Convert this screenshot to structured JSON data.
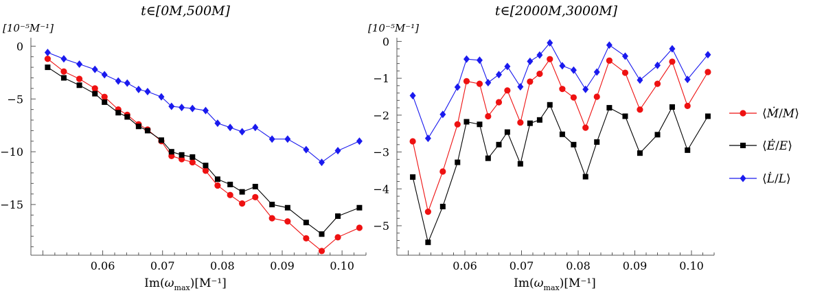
{
  "chart_data": [
    {
      "type": "line",
      "title": "t∈[0M,500M]",
      "ylabel": "[10⁻⁵M⁻¹]",
      "xlabel": "Im(ω_max)[M⁻¹]",
      "xlabel_main": "Im(",
      "xlabel_omega": "ω",
      "xlabel_sub": "max",
      "xlabel_tail": ")[M⁻¹]",
      "xlim": [
        0.048,
        0.104
      ],
      "ylim": [
        -19.8,
        0.8
      ],
      "xticks": [
        0.06,
        0.07,
        0.08,
        0.09,
        0.1
      ],
      "xtick_labels": [
        "0.06",
        "0.07",
        "0.08",
        "0.09",
        "0.10"
      ],
      "yticks": [
        0,
        -5,
        -10,
        -15
      ],
      "ytick_labels": [
        "0",
        "−5",
        "−10",
        "−15"
      ],
      "grid": false,
      "x": [
        0.0508,
        0.0535,
        0.0561,
        0.0587,
        0.0603,
        0.0626,
        0.0641,
        0.066,
        0.0675,
        0.0698,
        0.0715,
        0.0732,
        0.075,
        0.0772,
        0.0792,
        0.0813,
        0.0833,
        0.0855,
        0.0883,
        0.0909,
        0.094,
        0.0966,
        0.0993,
        0.1029
      ],
      "series": [
        {
          "name": "⟨Ṁ/M⟩",
          "color": "#ee1111",
          "marker": "circle",
          "values": [
            -1.2,
            -2.4,
            -3.1,
            -4.0,
            -4.8,
            -6.0,
            -6.5,
            -7.4,
            -7.9,
            -9.0,
            -10.4,
            -10.7,
            -11.0,
            -11.8,
            -13.2,
            -14.1,
            -14.9,
            -14.3,
            -16.3,
            -16.6,
            -18.2,
            -19.4,
            -18.1,
            -17.2
          ]
        },
        {
          "name": "⟨Ė/E⟩",
          "color": "#000000",
          "marker": "square",
          "values": [
            -2.0,
            -3.0,
            -3.7,
            -4.5,
            -5.3,
            -6.3,
            -6.7,
            -7.6,
            -8.0,
            -8.9,
            -10.0,
            -10.3,
            -10.5,
            -11.3,
            -12.6,
            -13.1,
            -13.8,
            -13.3,
            -15.0,
            -15.3,
            -16.7,
            -17.8,
            -16.1,
            -15.3
          ]
        },
        {
          "name": "⟨L̇/L⟩",
          "color": "#1a1aee",
          "marker": "diamond",
          "values": [
            -0.6,
            -1.2,
            -1.7,
            -2.2,
            -2.7,
            -3.3,
            -3.5,
            -4.1,
            -4.3,
            -4.8,
            -5.7,
            -5.8,
            -5.9,
            -6.1,
            -7.3,
            -7.7,
            -8.1,
            -7.7,
            -8.8,
            -8.8,
            -9.8,
            -11.0,
            -9.9,
            -9.0
          ]
        }
      ]
    },
    {
      "type": "line",
      "title": "t∈[2000M,3000M]",
      "ylabel": "[10⁻⁵M⁻¹]",
      "xlabel": "Im(ω_max)[M⁻¹]",
      "xlabel_main": "Im(",
      "xlabel_omega": "ω",
      "xlabel_sub": "max",
      "xlabel_tail": ")[M⁻¹]",
      "xlim": [
        0.048,
        0.104
      ],
      "ylim": [
        -5.8,
        0.1
      ],
      "xticks": [
        0.06,
        0.07,
        0.08,
        0.09,
        0.1
      ],
      "xtick_labels": [
        "0.06",
        "0.07",
        "0.08",
        "0.09",
        "0.10"
      ],
      "yticks": [
        0,
        -1,
        -2,
        -3,
        -4,
        -5
      ],
      "ytick_labels": [
        "0",
        "−1",
        "−2",
        "−3",
        "−4",
        "−5"
      ],
      "grid": false,
      "x": [
        0.0508,
        0.0535,
        0.0561,
        0.0587,
        0.0603,
        0.0626,
        0.0641,
        0.066,
        0.0675,
        0.0698,
        0.0715,
        0.0732,
        0.075,
        0.0772,
        0.0792,
        0.0813,
        0.0833,
        0.0855,
        0.0883,
        0.0909,
        0.094,
        0.0966,
        0.0993,
        0.1029
      ],
      "series": [
        {
          "name": "⟨Ṁ/M⟩",
          "color": "#ee1111",
          "marker": "circle",
          "values": [
            -2.71,
            -4.62,
            -3.53,
            -2.25,
            -1.08,
            -1.15,
            -2.03,
            -1.65,
            -1.33,
            -2.2,
            -1.09,
            -0.88,
            -0.48,
            -1.29,
            -1.52,
            -2.34,
            -1.5,
            -0.52,
            -0.85,
            -1.85,
            -1.15,
            -0.55,
            -1.75,
            -0.83
          ]
        },
        {
          "name": "⟨Ė/E⟩",
          "color": "#000000",
          "marker": "square",
          "values": [
            -3.68,
            -5.45,
            -4.48,
            -3.28,
            -2.18,
            -2.25,
            -3.17,
            -2.8,
            -2.46,
            -3.32,
            -2.22,
            -2.13,
            -1.72,
            -2.52,
            -2.8,
            -3.67,
            -2.73,
            -1.8,
            -2.03,
            -3.03,
            -2.53,
            -1.78,
            -2.95,
            -2.03
          ]
        },
        {
          "name": "⟨L̇/L⟩",
          "color": "#1a1aee",
          "marker": "diamond",
          "values": [
            -1.47,
            -2.63,
            -1.98,
            -1.24,
            -0.48,
            -0.51,
            -1.12,
            -0.9,
            -0.68,
            -1.23,
            -0.54,
            -0.37,
            -0.04,
            -0.66,
            -0.78,
            -1.3,
            -0.83,
            -0.1,
            -0.4,
            -1.05,
            -0.65,
            -0.2,
            -1.03,
            -0.36
          ]
        }
      ]
    }
  ],
  "legend": {
    "placement": "right",
    "items": [
      {
        "label_open": "⟨",
        "num": "Ṁ",
        "slash": "/",
        "den": "M",
        "label_close": "⟩",
        "color": "#ee1111",
        "marker": "circle"
      },
      {
        "label_open": "⟨",
        "num": "Ė",
        "slash": "/",
        "den": "E",
        "label_close": "⟩",
        "color": "#000000",
        "marker": "square"
      },
      {
        "label_open": "⟨",
        "num": "L̇",
        "slash": "/",
        "den": "L",
        "label_close": "⟩",
        "color": "#1a1aee",
        "marker": "diamond"
      }
    ]
  }
}
